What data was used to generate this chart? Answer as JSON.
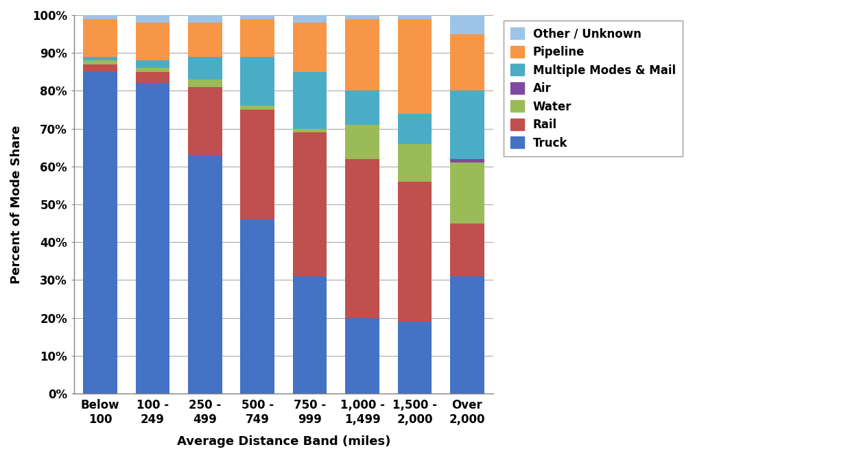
{
  "categories": [
    "Below\n100",
    "100 -\n249",
    "250 -\n499",
    "500 -\n749",
    "750 -\n999",
    "1,000 -\n1,499",
    "1,500 -\n2,000",
    "Over\n2,000"
  ],
  "modes": [
    "Truck",
    "Rail",
    "Water",
    "Air",
    "Multiple Modes & Mail",
    "Pipeline",
    "Other / Unknown"
  ],
  "colors": [
    "#4472C4",
    "#C0504D",
    "#9BBB59",
    "#7F49A0",
    "#4BACC6",
    "#F79646",
    "#9DC3E6"
  ],
  "data": {
    "Truck": [
      85,
      82,
      63,
      46,
      31,
      20,
      19,
      31
    ],
    "Rail": [
      2,
      3,
      18,
      29,
      38,
      42,
      37,
      14
    ],
    "Water": [
      1,
      1,
      2,
      1,
      1,
      9,
      10,
      16
    ],
    "Air": [
      0,
      0,
      0,
      0,
      0,
      0,
      0,
      1
    ],
    "Multiple Modes & Mail": [
      1,
      2,
      6,
      13,
      15,
      9,
      8,
      18
    ],
    "Pipeline": [
      10,
      10,
      9,
      10,
      13,
      19,
      25,
      15
    ],
    "Other / Unknown": [
      1,
      2,
      2,
      1,
      2,
      1,
      1,
      5
    ]
  },
  "xlabel": "Average Distance Band (miles)",
  "ylabel": "Percent of Mode Share",
  "ylim": [
    0,
    100
  ],
  "yticks": [
    0,
    10,
    20,
    30,
    40,
    50,
    60,
    70,
    80,
    90,
    100
  ],
  "ytick_labels": [
    "0%",
    "10%",
    "20%",
    "30%",
    "40%",
    "50%",
    "60%",
    "70%",
    "80%",
    "90%",
    "100%"
  ],
  "background_color": "#FFFFFF",
  "grid_color": "#A9A9A9",
  "axis_label_fontsize": 13,
  "tick_fontsize": 12,
  "legend_fontsize": 12,
  "bar_width": 0.65
}
